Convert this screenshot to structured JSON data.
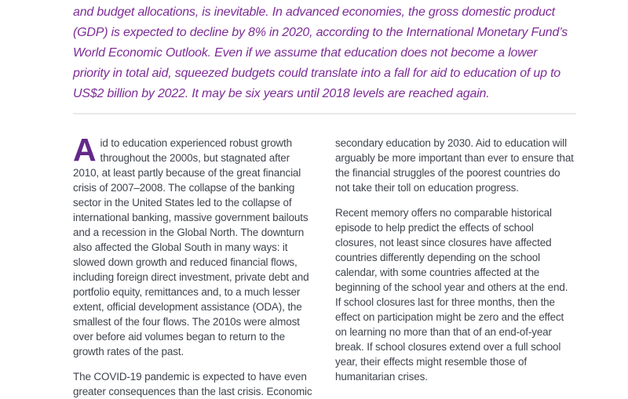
{
  "quote": {
    "text": "and budget allocations, is inevitable. In advanced economies, the gross domestic product (GDP) is expected to decline by 8% in 2020, according to the International Monetary Fund’s World Economic Outlook. Even if we assume that education does not become a lower priority in total aid, squeezed budgets could translate into a fall for aid to education of up to US$2 billion by 2022. It may be six years until 2018 levels are reached again."
  },
  "left_column": {
    "dropcap": "A",
    "para1_rest": "id to education experienced robust growth throughout the 2000s, but stagnated after 2010, at least partly because of the great financial crisis of 2007–2008. The collapse of the banking sector in the United States led to the collapse of international banking, massive government bailouts and a recession in the Global North. The downturn also affected the Global South in many ways: it slowed down growth and reduced financial flows, including foreign direct investment, private debt and portfolio equity, remittances and, to a much lesser extent, official development assistance (ODA), the smallest of the four flows. The 2010s were almost over before aid volumes began to return to the growth rates of the past.",
    "para2": "The COVID-19 pandemic is expected to have even greater consequences than the last crisis. Economic"
  },
  "right_column": {
    "para1": "secondary education by 2030. Aid to education will arguably be more important than ever to ensure that the financial struggles of the poorest countries do not take their toll on education progress.",
    "para2": "Recent memory offers no comparable historical episode to help predict the effects of school closures, not least since closures have affected countries differently depending on the school calendar, with some countries affected at the beginning of the school year and others at the end. If school closures last for three months, then the effect on participation might be zero and the effect on learning no more than that of an end-of-year break. If school closures extend over a full school year, their effects might resemble those of humanitarian crises."
  },
  "colors": {
    "quote_purple": "#7d2d96",
    "dropcap_purple": "#63288a",
    "body_text": "#3f444d",
    "divider": "#e9e9e9"
  }
}
